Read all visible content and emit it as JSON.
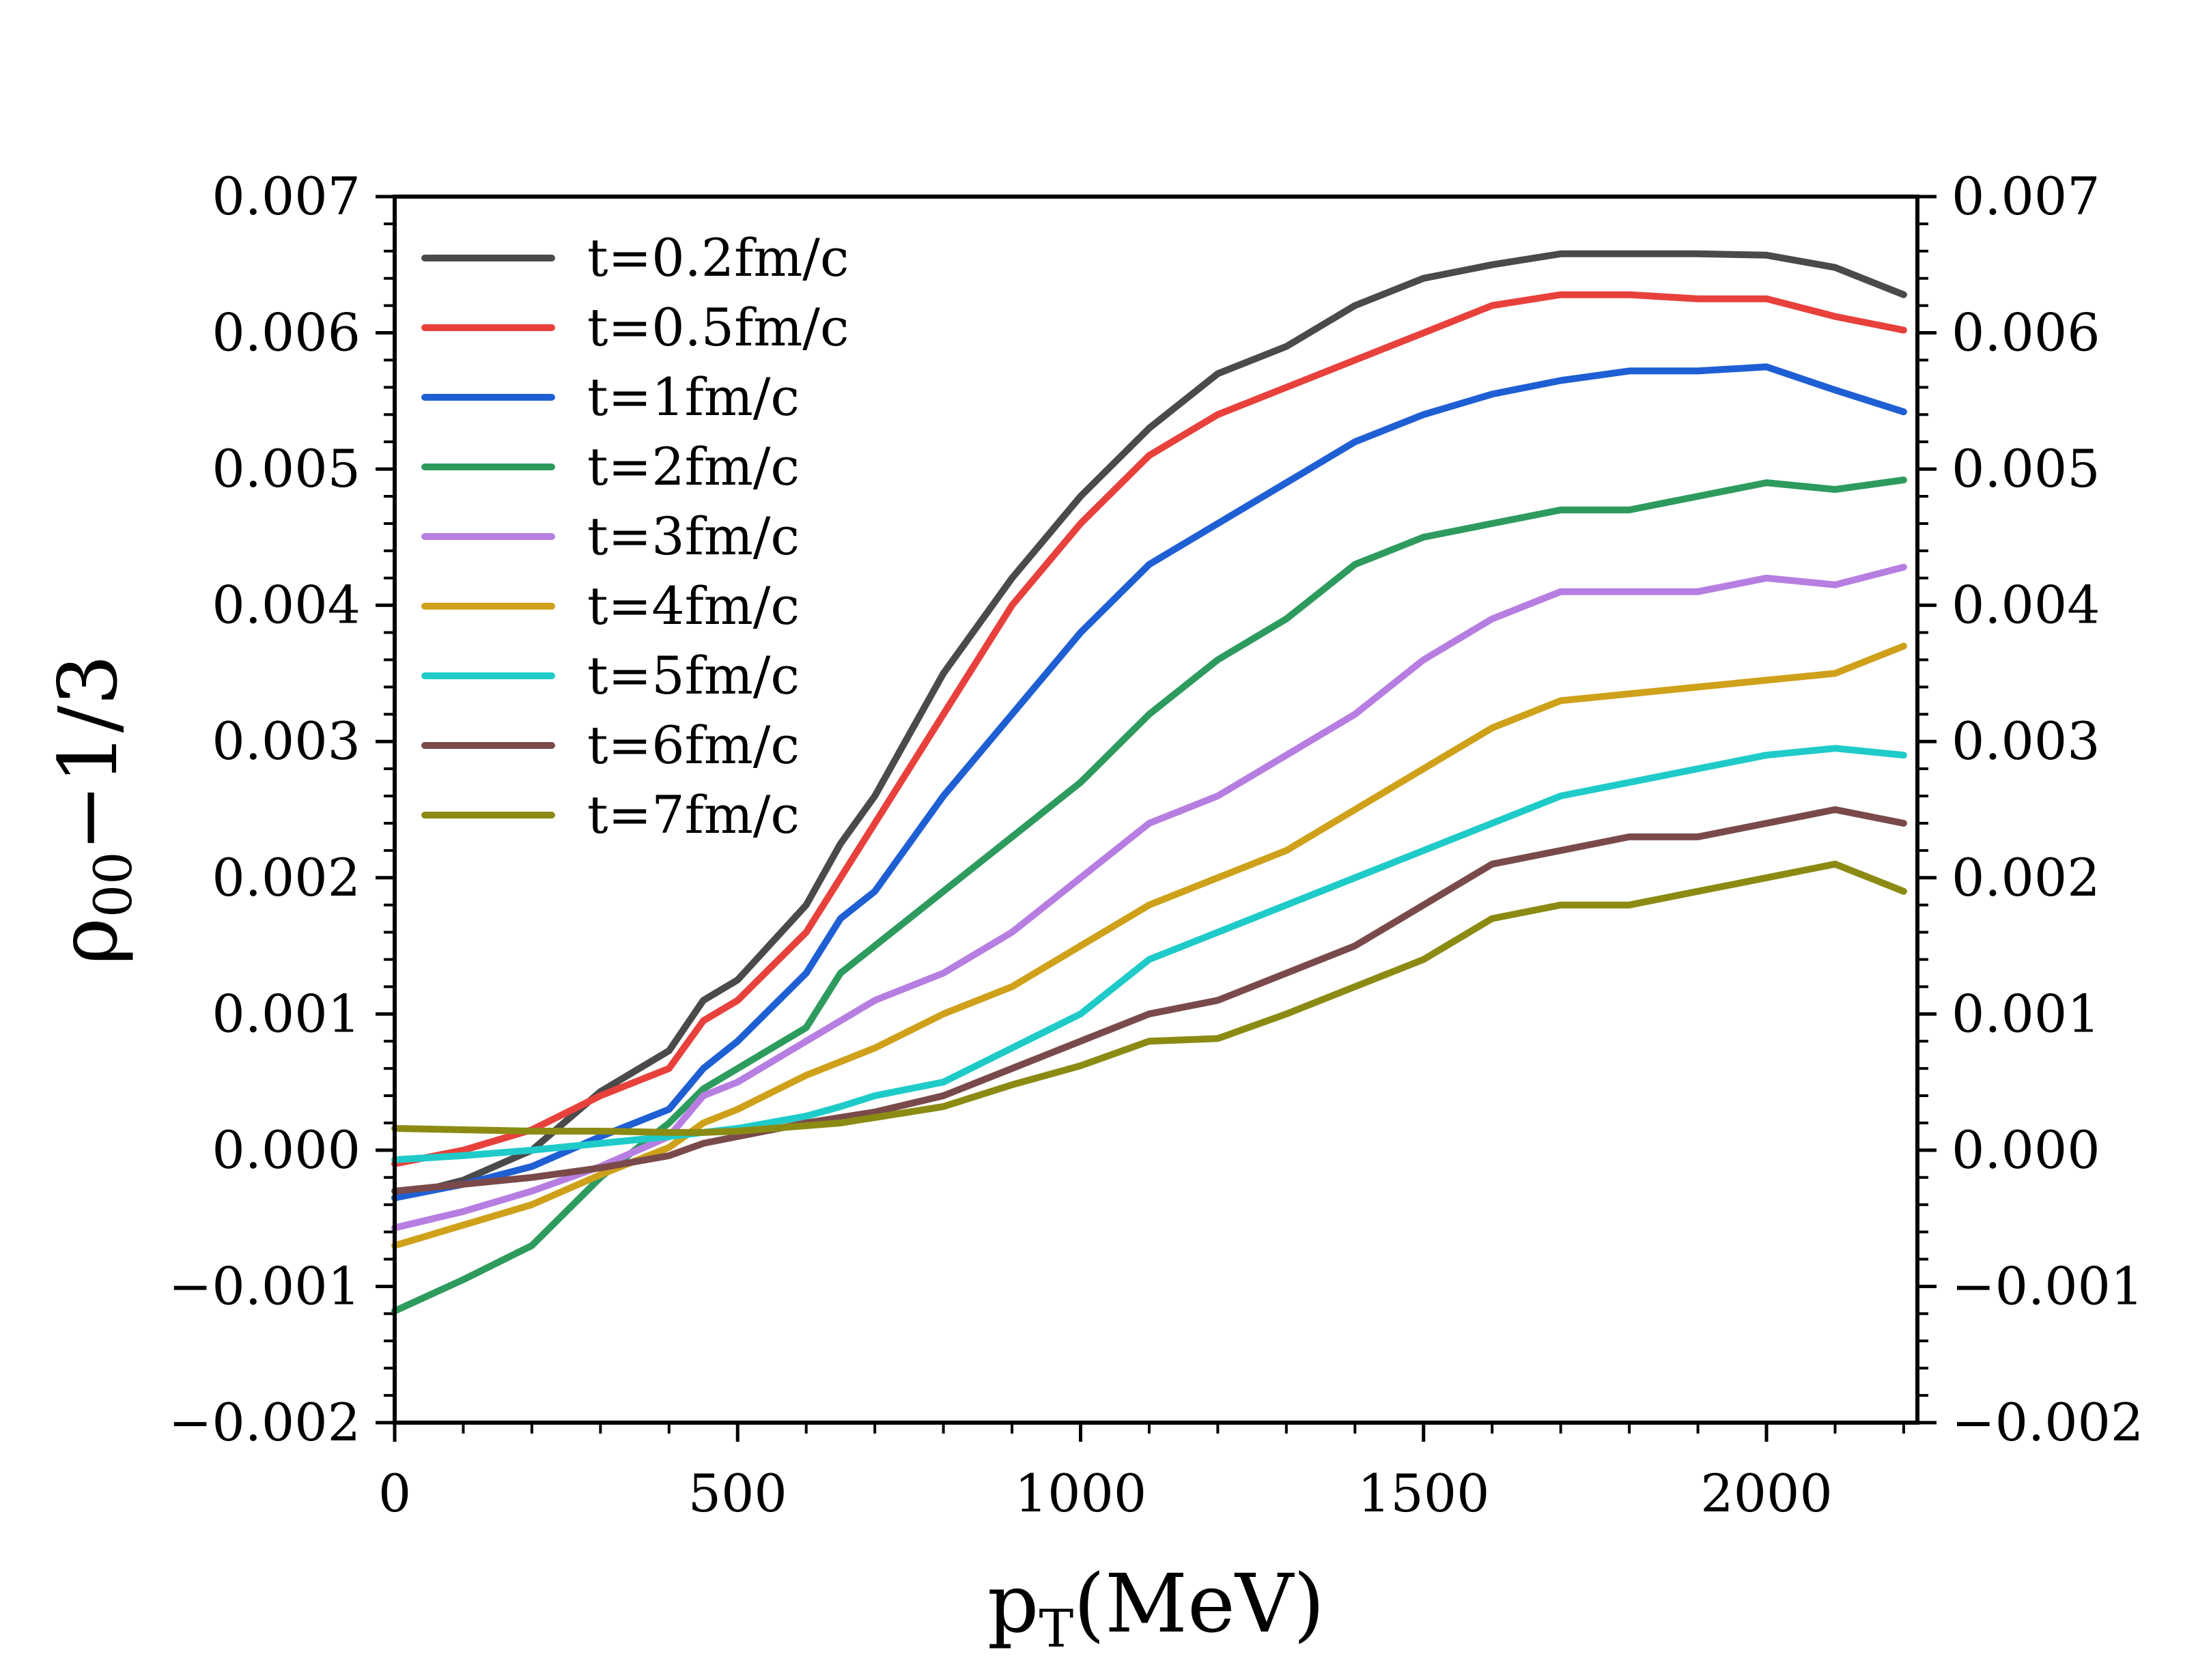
{
  "chart_data": {
    "type": "line",
    "title": "",
    "xlabel": {
      "main": "p",
      "sub": "T",
      "unit": "(MeV)"
    },
    "ylabel": {
      "main": "ρ",
      "sub": "00",
      "rest": "−1/3"
    },
    "xlim": [
      0,
      2220
    ],
    "ylim": [
      -0.002,
      0.007
    ],
    "x_ticks": [
      0,
      500,
      1000,
      1500,
      2000
    ],
    "x_tick_labels": [
      "0",
      "500",
      "1000",
      "1500",
      "2000"
    ],
    "y_ticks": [
      -0.002,
      -0.001,
      0.0,
      0.001,
      0.002,
      0.003,
      0.004,
      0.005,
      0.006,
      0.007
    ],
    "y_tick_labels": [
      "−0.002",
      "−0.001",
      "0.000",
      "0.001",
      "0.002",
      "0.003",
      "0.004",
      "0.005",
      "0.006",
      "0.007"
    ],
    "legend_position": "top-left",
    "x": [
      0,
      100,
      200,
      300,
      400,
      450,
      500,
      600,
      650,
      700,
      800,
      900,
      1000,
      1100,
      1200,
      1300,
      1400,
      1500,
      1600,
      1700,
      1800,
      1900,
      2000,
      2100,
      2200
    ],
    "series": [
      {
        "name": "t=0.2fm/c",
        "color": "#4a4a4a",
        "values": [
          -0.00035,
          -0.00022,
          0.0,
          0.00043,
          0.00073,
          0.0011,
          0.00125,
          0.0018,
          0.00225,
          0.0026,
          0.0035,
          0.0042,
          0.0048,
          0.0053,
          0.0057,
          0.0059,
          0.0062,
          0.0064,
          0.0065,
          0.00658,
          0.00658,
          0.00658,
          0.00657,
          0.00648,
          0.00628
        ]
      },
      {
        "name": "t=0.5fm/c",
        "color": "#e8413c",
        "values": [
          -0.0001,
          0.0,
          0.00015,
          0.0004,
          0.0006,
          0.00095,
          0.0011,
          0.0016,
          0.002,
          0.0024,
          0.0032,
          0.004,
          0.0046,
          0.0051,
          0.0054,
          0.0056,
          0.0058,
          0.006,
          0.0062,
          0.00628,
          0.00628,
          0.00625,
          0.00625,
          0.00612,
          0.00602
        ]
      },
      {
        "name": "t=1fm/c",
        "color": "#1f5fd4",
        "values": [
          -0.00035,
          -0.00025,
          -0.00012,
          0.0001,
          0.0003,
          0.0006,
          0.0008,
          0.0013,
          0.0017,
          0.0019,
          0.0026,
          0.0032,
          0.0038,
          0.0043,
          0.0046,
          0.0049,
          0.0052,
          0.0054,
          0.00555,
          0.00565,
          0.00572,
          0.00572,
          0.00575,
          0.00558,
          0.00542
        ]
      },
      {
        "name": "t=2fm/c",
        "color": "#2e9b5e",
        "values": [
          -0.00118,
          -0.00095,
          -0.0007,
          -0.0002,
          0.0002,
          0.00045,
          0.0006,
          0.0009,
          0.0013,
          0.0015,
          0.0019,
          0.0023,
          0.0027,
          0.0032,
          0.0036,
          0.0039,
          0.0043,
          0.0045,
          0.0046,
          0.0047,
          0.0047,
          0.0048,
          0.0049,
          0.00485,
          0.00492
        ]
      },
      {
        "name": "t=3fm/c",
        "color": "#b77ee2",
        "values": [
          -0.00057,
          -0.00045,
          -0.0003,
          -0.00012,
          0.0001,
          0.0004,
          0.0005,
          0.0008,
          0.00095,
          0.0011,
          0.0013,
          0.0016,
          0.002,
          0.0024,
          0.0026,
          0.0029,
          0.0032,
          0.0036,
          0.0039,
          0.0041,
          0.0041,
          0.0041,
          0.0042,
          0.00415,
          0.00428
        ]
      },
      {
        "name": "t=4fm/c",
        "color": "#cfa11a",
        "values": [
          -0.0007,
          -0.00055,
          -0.0004,
          -0.00018,
          2e-05,
          0.0002,
          0.0003,
          0.00055,
          0.00065,
          0.00075,
          0.001,
          0.0012,
          0.0015,
          0.0018,
          0.002,
          0.0022,
          0.0025,
          0.0028,
          0.0031,
          0.0033,
          0.00335,
          0.0034,
          0.00345,
          0.0035,
          0.0037
        ]
      },
      {
        "name": "t=5fm/c",
        "color": "#1ecbc9",
        "values": [
          -7e-05,
          -4e-05,
          0.0,
          5e-05,
          0.0001,
          0.00013,
          0.00016,
          0.00025,
          0.00032,
          0.0004,
          0.0005,
          0.00075,
          0.001,
          0.0014,
          0.0016,
          0.0018,
          0.002,
          0.0022,
          0.0024,
          0.0026,
          0.0027,
          0.0028,
          0.0029,
          0.00295,
          0.0029
        ]
      },
      {
        "name": "t=6fm/c",
        "color": "#7a4a4a",
        "values": [
          -0.0003,
          -0.00025,
          -0.0002,
          -0.00013,
          -4e-05,
          5e-05,
          0.0001,
          0.0002,
          0.00024,
          0.00028,
          0.0004,
          0.0006,
          0.0008,
          0.001,
          0.0011,
          0.0013,
          0.0015,
          0.0018,
          0.0021,
          0.0022,
          0.0023,
          0.0023,
          0.0024,
          0.0025,
          0.0024
        ]
      },
      {
        "name": "t=7fm/c",
        "color": "#8b8b14",
        "values": [
          0.00016,
          0.00015,
          0.00014,
          0.00014,
          0.00013,
          0.00013,
          0.00014,
          0.00018,
          0.0002,
          0.00024,
          0.00032,
          0.00048,
          0.00062,
          0.0008,
          0.00082,
          0.001,
          0.0012,
          0.0014,
          0.0017,
          0.0018,
          0.0018,
          0.0019,
          0.002,
          0.0021,
          0.0019
        ]
      }
    ]
  }
}
